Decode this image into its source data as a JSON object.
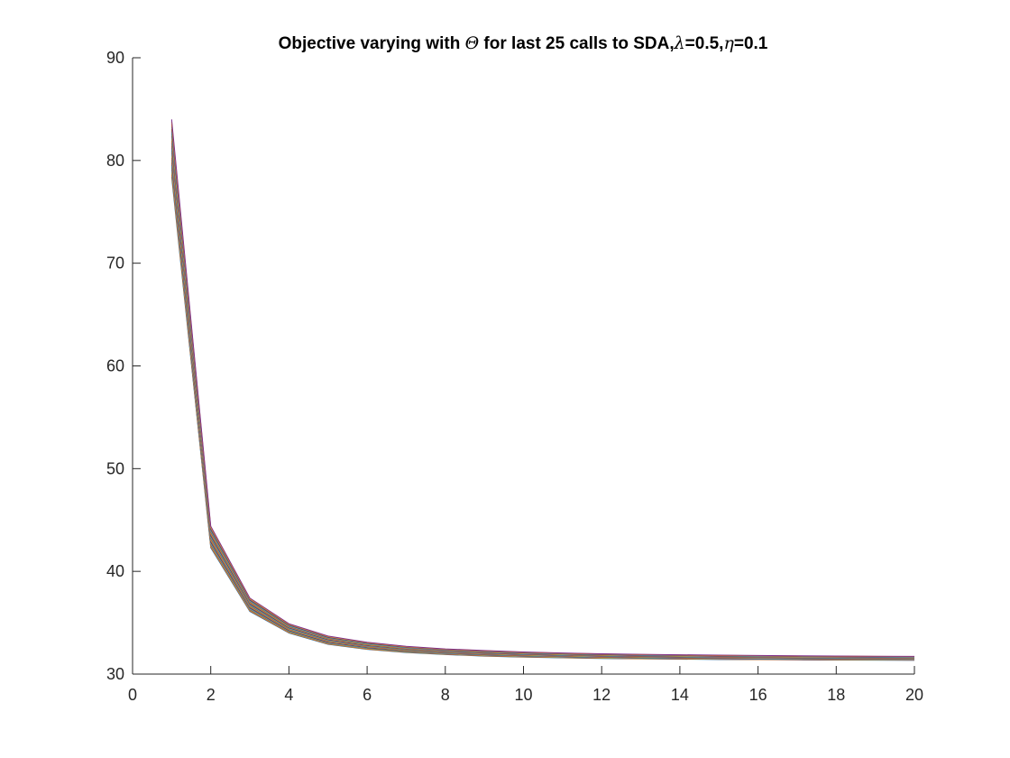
{
  "chart_data": {
    "type": "line",
    "title": {
      "prefix": "Objective varying with ",
      "theta_symbol": "Θ",
      "middle": " for last 25 calls to SDA,",
      "lambda_symbol": "λ",
      "lambda_value": "=0.5,",
      "eta_symbol": "η",
      "eta_value": "=0.1"
    },
    "xlabel": "",
    "ylabel": "",
    "xlim": [
      0,
      20
    ],
    "ylim": [
      30,
      90
    ],
    "x_ticks": [
      "0",
      "2",
      "4",
      "6",
      "8",
      "10",
      "12",
      "14",
      "16",
      "18",
      "20"
    ],
    "y_ticks": [
      "30",
      "40",
      "50",
      "60",
      "70",
      "80",
      "90"
    ],
    "grid": false,
    "legend": "none",
    "x": [
      1,
      2,
      3,
      4,
      5,
      6,
      7,
      8,
      9,
      10,
      11,
      12,
      13,
      14,
      15,
      16,
      17,
      18,
      19,
      20
    ],
    "series_count": 25,
    "series_lower_bound": [
      78.4,
      42.3,
      36.1,
      34.0,
      32.9,
      32.4,
      32.1,
      31.9,
      31.75,
      31.65,
      31.58,
      31.52,
      31.48,
      31.45,
      31.42,
      31.4,
      31.38,
      31.36,
      31.35,
      31.34
    ],
    "series_upper_bound": [
      84.0,
      44.4,
      37.4,
      34.9,
      33.7,
      33.1,
      32.7,
      32.45,
      32.3,
      32.15,
      32.05,
      31.98,
      31.92,
      31.88,
      31.84,
      31.81,
      31.78,
      31.76,
      31.74,
      31.72
    ],
    "colors": [
      "#0072BD",
      "#D95319",
      "#EDB120",
      "#7E2F8E",
      "#77AC30",
      "#4DBEEE",
      "#A2142F"
    ]
  }
}
